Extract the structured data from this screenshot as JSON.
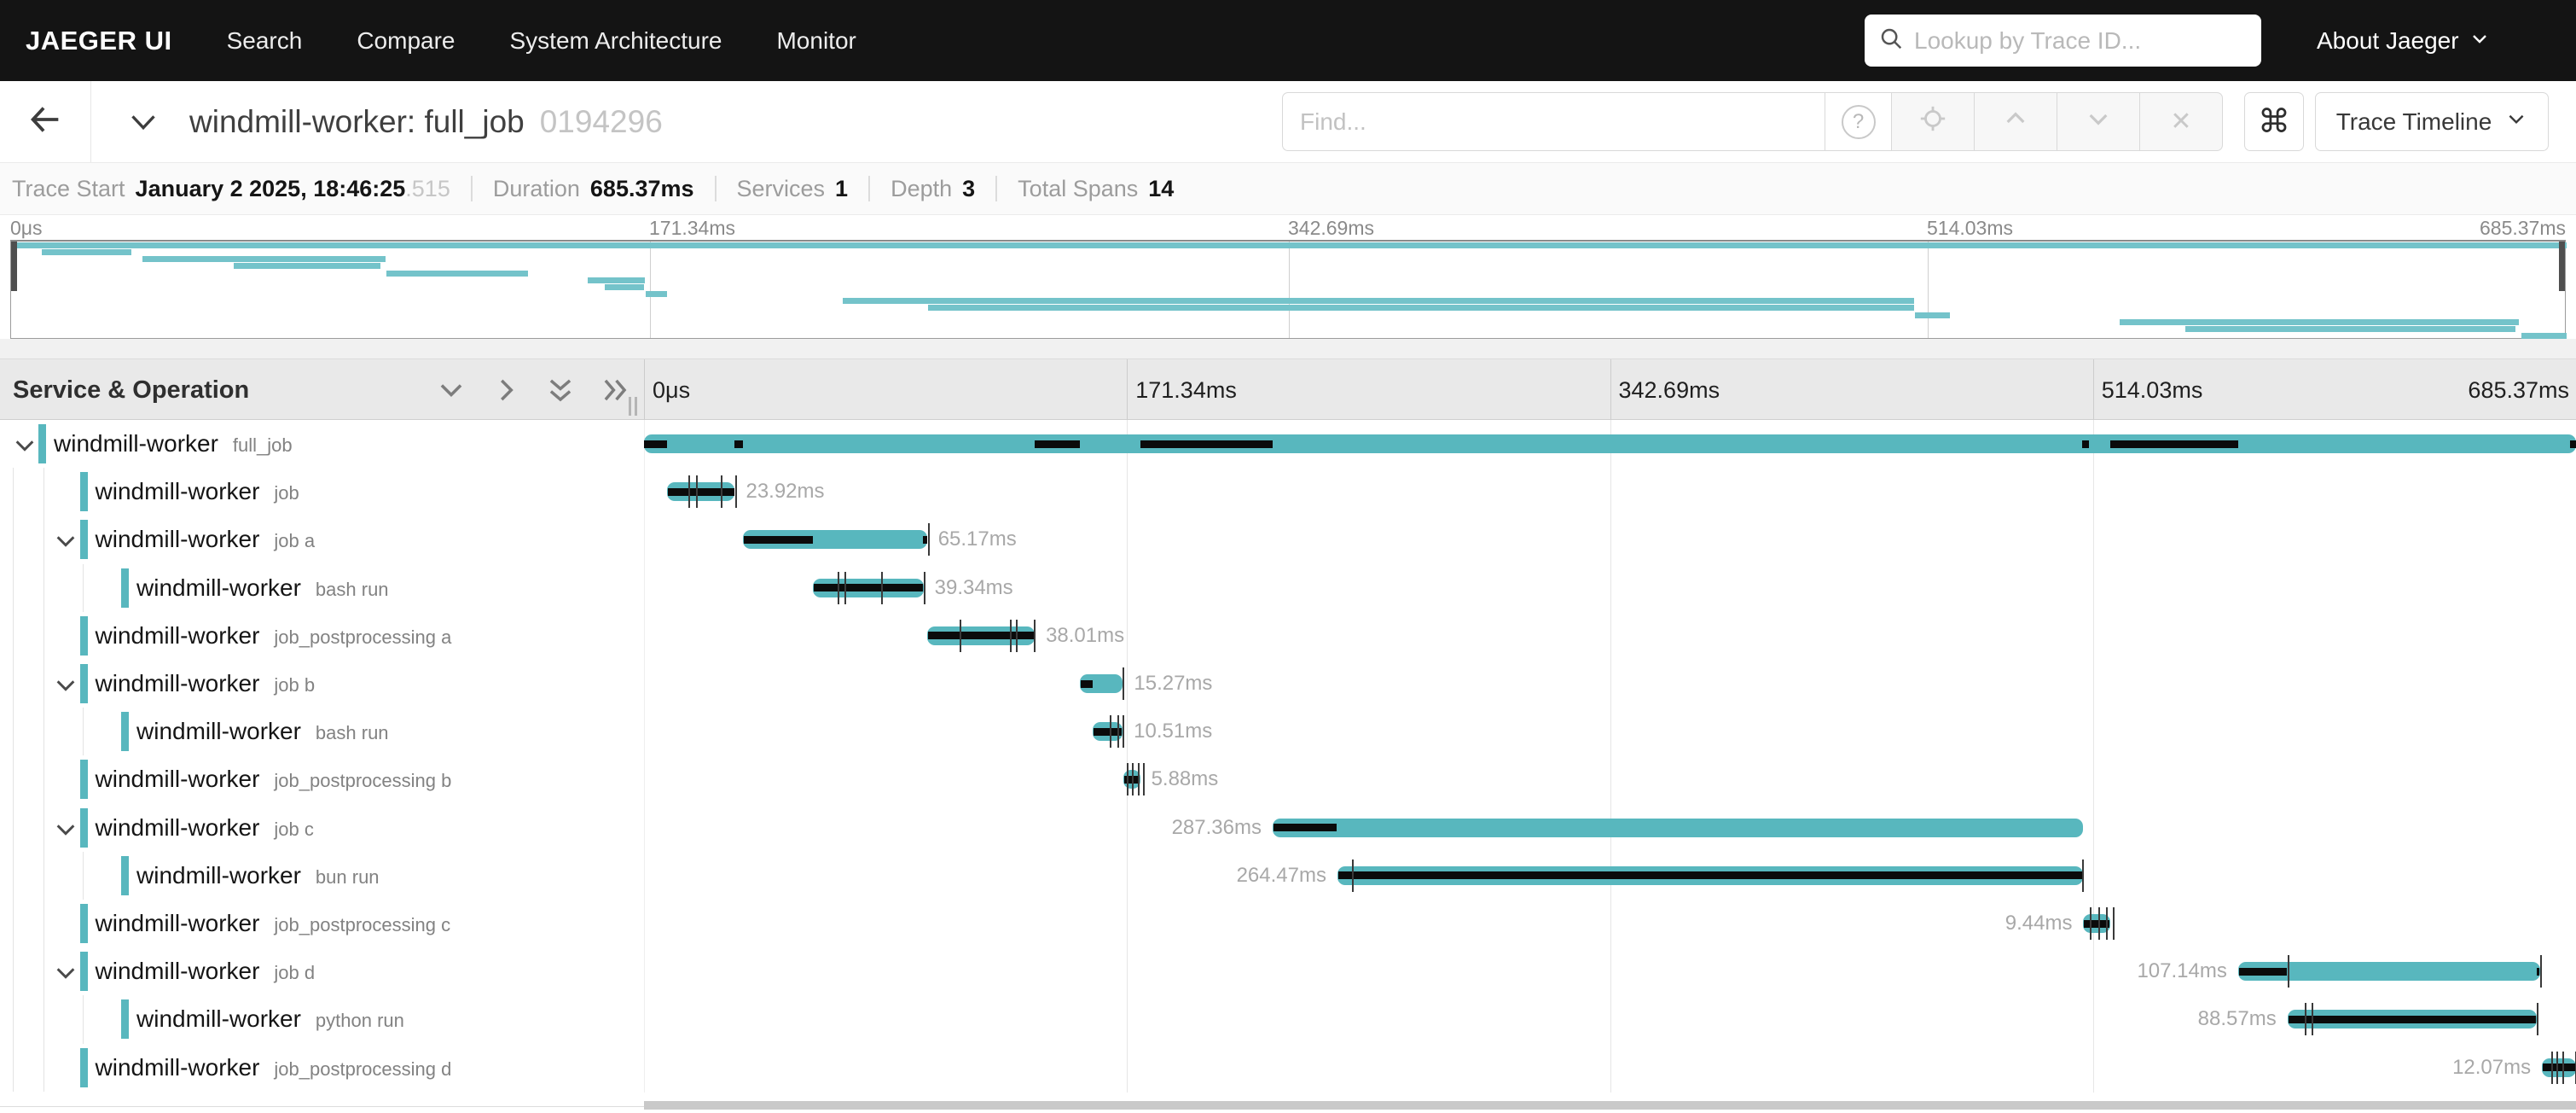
{
  "nav": {
    "brand": "JAEGER UI",
    "items": [
      "Search",
      "Compare",
      "System Architecture",
      "Monitor"
    ],
    "search_placeholder": "Lookup by Trace ID...",
    "about_label": "About Jaeger"
  },
  "trace_header": {
    "title": "windmill-worker: full_job",
    "trace_id": "0194296",
    "find_placeholder": "Find...",
    "view_label": "Trace Timeline"
  },
  "trace_info": {
    "trace_start_label": "Trace Start",
    "trace_start_value": "January 2 2025, 18:46:25",
    "trace_start_fraction": ".515",
    "duration_label": "Duration",
    "duration_value": "685.37ms",
    "services_label": "Services",
    "services_value": "1",
    "depth_label": "Depth",
    "depth_value": "3",
    "total_spans_label": "Total Spans",
    "total_spans_value": "14"
  },
  "icons": {
    "help": "?",
    "close": "✕",
    "command": "⌘"
  },
  "timeline": {
    "left_header": "Service & Operation",
    "duration_ms": 685.37,
    "ticks": [
      "0μs",
      "171.34ms",
      "342.69ms",
      "514.03ms",
      "685.37ms"
    ],
    "colors": {
      "bar": "#58b7be",
      "critical": "#0b0b0b",
      "minimap_bar": "#74c3ca"
    },
    "spans": [
      {
        "service": "windmill-worker",
        "operation": "full_job",
        "depth": 0,
        "expanded": true,
        "start_ms": 0,
        "duration_ms": 685.37,
        "duration_label": "",
        "label_side": "none",
        "critical_ms": [
          [
            0,
            8.3
          ],
          [
            32.2,
            35.2
          ],
          [
            138.6,
            154.6
          ],
          [
            176.1,
            223.0
          ],
          [
            510.3,
            512.6
          ],
          [
            520.1,
            565.5
          ],
          [
            683.4,
            685.37
          ]
        ],
        "event_ticks_ms": []
      },
      {
        "service": "windmill-worker",
        "operation": "job",
        "depth": 1,
        "expanded": false,
        "start_ms": 8.3,
        "duration_ms": 23.92,
        "duration_label": "23.92ms",
        "label_side": "right",
        "critical_ms": [
          [
            8.6,
            32.0
          ]
        ],
        "event_ticks_ms": [
          15.7,
          18.5,
          27.2,
          32.3
        ]
      },
      {
        "service": "windmill-worker",
        "operation": "job a",
        "depth": 1,
        "expanded": true,
        "start_ms": 35.2,
        "duration_ms": 65.17,
        "duration_label": "65.17ms",
        "label_side": "right",
        "critical_ms": [
          [
            35.4,
            59.8
          ],
          [
            99.0,
            100.4
          ]
        ],
        "event_ticks_ms": [
          100.9
        ]
      },
      {
        "service": "windmill-worker",
        "operation": "bash run",
        "depth": 2,
        "expanded": false,
        "start_ms": 59.8,
        "duration_ms": 39.34,
        "duration_label": "39.34ms",
        "label_side": "right",
        "critical_ms": [
          [
            60.1,
            98.9
          ]
        ],
        "event_ticks_ms": [
          68.7,
          71.0,
          84.0,
          99.3
        ]
      },
      {
        "service": "windmill-worker",
        "operation": "job_postprocessing a",
        "depth": 1,
        "expanded": false,
        "start_ms": 100.6,
        "duration_ms": 38.01,
        "duration_label": "38.01ms",
        "label_side": "right",
        "critical_ms": [
          [
            100.9,
            138.4
          ]
        ],
        "event_ticks_ms": [
          111.9,
          129.8,
          131.9,
          138.4
        ]
      },
      {
        "service": "windmill-worker",
        "operation": "job b",
        "depth": 1,
        "expanded": true,
        "start_ms": 154.6,
        "duration_ms": 15.27,
        "duration_label": "15.27ms",
        "label_side": "right",
        "critical_ms": [
          [
            154.9,
            159.2
          ]
        ],
        "event_ticks_ms": [
          169.9
        ]
      },
      {
        "service": "windmill-worker",
        "operation": "bash run",
        "depth": 2,
        "expanded": false,
        "start_ms": 159.3,
        "duration_ms": 10.51,
        "duration_label": "10.51ms",
        "label_side": "right",
        "critical_ms": [
          [
            159.6,
            169.6
          ]
        ],
        "event_ticks_ms": [
          165.2,
          167.9,
          169.8
        ]
      },
      {
        "service": "windmill-worker",
        "operation": "job_postprocessing b",
        "depth": 1,
        "expanded": false,
        "start_ms": 170.1,
        "duration_ms": 5.88,
        "duration_label": "5.88ms",
        "label_side": "right",
        "critical_ms": [
          [
            170.3,
            175.9
          ]
        ],
        "event_ticks_ms": [
          171.3,
          173.2,
          175.2,
          177.0
        ]
      },
      {
        "service": "windmill-worker",
        "operation": "job c",
        "depth": 1,
        "expanded": true,
        "start_ms": 223.0,
        "duration_ms": 287.36,
        "duration_label": "287.36ms",
        "label_side": "left",
        "critical_ms": [
          [
            223.3,
            245.8
          ]
        ],
        "event_ticks_ms": []
      },
      {
        "service": "windmill-worker",
        "operation": "bun run",
        "depth": 2,
        "expanded": false,
        "start_ms": 246.0,
        "duration_ms": 264.47,
        "duration_label": "264.47ms",
        "label_side": "left",
        "critical_ms": [
          [
            246.3,
            510.2
          ]
        ],
        "event_ticks_ms": [
          251.0,
          510.2
        ]
      },
      {
        "service": "windmill-worker",
        "operation": "job_postprocessing c",
        "depth": 1,
        "expanded": false,
        "start_ms": 510.6,
        "duration_ms": 9.44,
        "duration_label": "9.44ms",
        "label_side": "left",
        "critical_ms": [
          [
            510.9,
            519.9
          ]
        ],
        "event_ticks_ms": [
          513.0,
          516.0,
          518.5,
          521.0
        ]
      },
      {
        "service": "windmill-worker",
        "operation": "job d",
        "depth": 1,
        "expanded": true,
        "start_ms": 565.5,
        "duration_ms": 107.14,
        "duration_label": "107.14ms",
        "label_side": "left",
        "critical_ms": [
          [
            565.8,
            582.8
          ],
          [
            671.6,
            672.5
          ]
        ],
        "event_ticks_ms": [
          583.0,
          672.8
        ]
      },
      {
        "service": "windmill-worker",
        "operation": "python run",
        "depth": 2,
        "expanded": false,
        "start_ms": 583.0,
        "duration_ms": 88.57,
        "duration_label": "88.57ms",
        "label_side": "left",
        "critical_ms": [
          [
            583.3,
            671.3
          ]
        ],
        "event_ticks_ms": [
          589.0,
          591.5,
          671.4
        ]
      },
      {
        "service": "windmill-worker",
        "operation": "job_postprocessing d",
        "depth": 1,
        "expanded": false,
        "start_ms": 673.3,
        "duration_ms": 12.07,
        "duration_label": "12.07ms",
        "label_side": "left",
        "critical_ms": [
          [
            673.6,
            685.2
          ]
        ],
        "event_ticks_ms": [
          676.5,
          678.5,
          680.5,
          685.2
        ]
      }
    ]
  }
}
